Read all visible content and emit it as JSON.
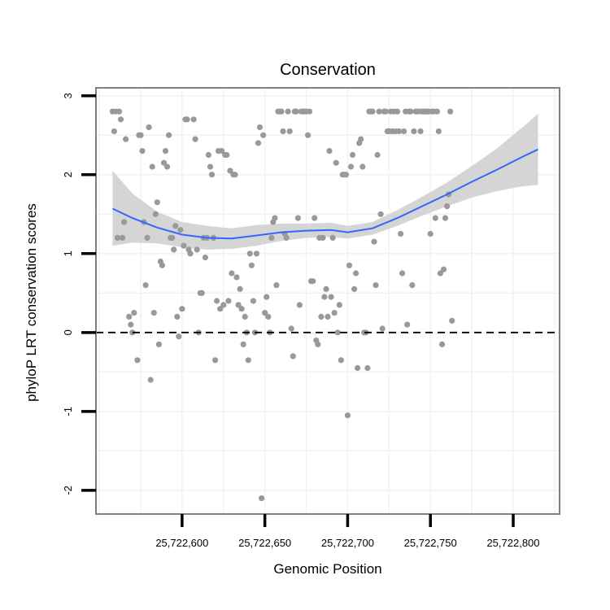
{
  "chart_data": {
    "type": "scatter",
    "title": "Conservation",
    "xlabel": "Genomic Position",
    "ylabel": "phyloP LRT conservation scores",
    "xlim": [
      25722548,
      25722828
    ],
    "ylim": [
      -2.3,
      3.1
    ],
    "x_ticks": [
      25722600,
      25722650,
      25722700,
      25722750,
      25722800
    ],
    "x_tick_labels": [
      "25,722,600",
      "25,722,650",
      "25,722,700",
      "25,722,750",
      "25,722,800"
    ],
    "y_ticks": [
      -2,
      -1,
      0,
      1,
      2,
      3
    ],
    "y_tick_labels": [
      "-2",
      "-1",
      "0",
      "1",
      "2",
      "3"
    ],
    "grid": true,
    "reference_line": {
      "y": 0,
      "style": "dashed"
    },
    "colors": {
      "points": "#999999",
      "smooth": "#3366FF",
      "band": "#d3d3d3",
      "panel_border": "#7f7f7f",
      "grid": "#f2f2f2"
    },
    "points": [
      [
        25722558,
        2.8
      ],
      [
        25722560,
        2.8
      ],
      [
        25722562,
        2.8
      ],
      [
        25722559,
        2.55
      ],
      [
        25722563,
        2.7
      ],
      [
        25722566,
        2.45
      ],
      [
        25722561,
        1.2
      ],
      [
        25722564,
        1.2
      ],
      [
        25722565,
        1.4
      ],
      [
        25722568,
        0.2
      ],
      [
        25722569,
        0.1
      ],
      [
        25722570,
        0.0
      ],
      [
        25722571,
        0.25
      ],
      [
        25722573,
        -0.35
      ],
      [
        25722574,
        2.5
      ],
      [
        25722575,
        2.5
      ],
      [
        25722576,
        2.3
      ],
      [
        25722577,
        1.4
      ],
      [
        25722578,
        0.6
      ],
      [
        25722579,
        1.2
      ],
      [
        25722580,
        2.6
      ],
      [
        25722581,
        -0.6
      ],
      [
        25722582,
        2.1
      ],
      [
        25722583,
        0.25
      ],
      [
        25722584,
        1.5
      ],
      [
        25722585,
        1.65
      ],
      [
        25722586,
        -0.15
      ],
      [
        25722587,
        0.9
      ],
      [
        25722588,
        0.85
      ],
      [
        25722589,
        2.15
      ],
      [
        25722590,
        2.3
      ],
      [
        25722591,
        2.1
      ],
      [
        25722592,
        2.5
      ],
      [
        25722593,
        1.2
      ],
      [
        25722594,
        1.2
      ],
      [
        25722595,
        1.05
      ],
      [
        25722596,
        1.35
      ],
      [
        25722597,
        0.2
      ],
      [
        25722598,
        -0.05
      ],
      [
        25722599,
        1.3
      ],
      [
        25722600,
        0.3
      ],
      [
        25722601,
        1.1
      ],
      [
        25722602,
        2.7
      ],
      [
        25722603,
        2.7
      ],
      [
        25722604,
        1.05
      ],
      [
        25722605,
        1.0
      ],
      [
        25722607,
        2.7
      ],
      [
        25722608,
        2.45
      ],
      [
        25722609,
        1.05
      ],
      [
        25722610,
        0.0
      ],
      [
        25722611,
        0.5
      ],
      [
        25722612,
        0.5
      ],
      [
        25722613,
        1.2
      ],
      [
        25722614,
        0.95
      ],
      [
        25722615,
        1.2
      ],
      [
        25722616,
        2.25
      ],
      [
        25722617,
        2.1
      ],
      [
        25722618,
        2.0
      ],
      [
        25722619,
        1.2
      ],
      [
        25722620,
        -0.35
      ],
      [
        25722621,
        0.4
      ],
      [
        25722622,
        2.3
      ],
      [
        25722623,
        0.3
      ],
      [
        25722624,
        2.3
      ],
      [
        25722625,
        0.35
      ],
      [
        25722626,
        2.25
      ],
      [
        25722627,
        2.25
      ],
      [
        25722628,
        0.4
      ],
      [
        25722629,
        2.05
      ],
      [
        25722630,
        0.75
      ],
      [
        25722631,
        2.0
      ],
      [
        25722632,
        2.0
      ],
      [
        25722633,
        0.7
      ],
      [
        25722634,
        0.35
      ],
      [
        25722635,
        0.55
      ],
      [
        25722636,
        0.3
      ],
      [
        25722637,
        -0.15
      ],
      [
        25722638,
        0.2
      ],
      [
        25722639,
        0.0
      ],
      [
        25722640,
        -0.35
      ],
      [
        25722641,
        1.0
      ],
      [
        25722642,
        0.85
      ],
      [
        25722643,
        0.4
      ],
      [
        25722644,
        0.0
      ],
      [
        25722645,
        1.0
      ],
      [
        25722646,
        2.4
      ],
      [
        25722647,
        2.6
      ],
      [
        25722648,
        -2.1
      ],
      [
        25722649,
        2.5
      ],
      [
        25722650,
        0.25
      ],
      [
        25722651,
        0.45
      ],
      [
        25722652,
        0.2
      ],
      [
        25722653,
        0.0
      ],
      [
        25722654,
        1.2
      ],
      [
        25722655,
        1.4
      ],
      [
        25722656,
        1.45
      ],
      [
        25722657,
        0.6
      ],
      [
        25722658,
        2.8
      ],
      [
        25722659,
        2.8
      ],
      [
        25722660,
        2.8
      ],
      [
        25722661,
        2.55
      ],
      [
        25722662,
        1.25
      ],
      [
        25722663,
        1.2
      ],
      [
        25722664,
        2.8
      ],
      [
        25722665,
        2.55
      ],
      [
        25722666,
        0.05
      ],
      [
        25722667,
        -0.3
      ],
      [
        25722668,
        2.8
      ],
      [
        25722669,
        2.8
      ],
      [
        25722670,
        1.45
      ],
      [
        25722671,
        0.35
      ],
      [
        25722672,
        2.8
      ],
      [
        25722673,
        2.8
      ],
      [
        25722674,
        2.8
      ],
      [
        25722675,
        2.8
      ],
      [
        25722676,
        2.5
      ],
      [
        25722677,
        2.8
      ],
      [
        25722678,
        0.65
      ],
      [
        25722679,
        0.65
      ],
      [
        25722680,
        1.45
      ],
      [
        25722681,
        -0.1
      ],
      [
        25722682,
        -0.15
      ],
      [
        25722683,
        1.2
      ],
      [
        25722684,
        0.2
      ],
      [
        25722685,
        1.2
      ],
      [
        25722686,
        0.45
      ],
      [
        25722687,
        0.55
      ],
      [
        25722688,
        0.2
      ],
      [
        25722689,
        2.3
      ],
      [
        25722690,
        0.45
      ],
      [
        25722691,
        1.2
      ],
      [
        25722692,
        0.25
      ],
      [
        25722693,
        2.15
      ],
      [
        25722694,
        0.0
      ],
      [
        25722695,
        0.35
      ],
      [
        25722696,
        -0.35
      ],
      [
        25722697,
        2.0
      ],
      [
        25722698,
        2.0
      ],
      [
        25722699,
        2.0
      ],
      [
        25722700,
        -1.05
      ],
      [
        25722701,
        0.85
      ],
      [
        25722702,
        2.1
      ],
      [
        25722703,
        2.25
      ],
      [
        25722704,
        0.55
      ],
      [
        25722705,
        0.75
      ],
      [
        25722706,
        -0.45
      ],
      [
        25722707,
        2.4
      ],
      [
        25722708,
        2.45
      ],
      [
        25722709,
        2.1
      ],
      [
        25722710,
        0.0
      ],
      [
        25722711,
        0.0
      ],
      [
        25722712,
        -0.45
      ],
      [
        25722713,
        2.8
      ],
      [
        25722714,
        2.8
      ],
      [
        25722715,
        2.8
      ],
      [
        25722716,
        1.15
      ],
      [
        25722717,
        0.6
      ],
      [
        25722718,
        2.25
      ],
      [
        25722719,
        2.8
      ],
      [
        25722720,
        1.5
      ],
      [
        25722721,
        0.05
      ],
      [
        25722722,
        2.8
      ],
      [
        25722723,
        2.8
      ],
      [
        25722724,
        2.55
      ],
      [
        25722725,
        2.55
      ],
      [
        25722726,
        2.8
      ],
      [
        25722727,
        2.55
      ],
      [
        25722728,
        2.8
      ],
      [
        25722729,
        2.55
      ],
      [
        25722730,
        2.8
      ],
      [
        25722731,
        2.55
      ],
      [
        25722732,
        1.25
      ],
      [
        25722733,
        0.75
      ],
      [
        25722734,
        2.55
      ],
      [
        25722735,
        2.8
      ],
      [
        25722736,
        0.1
      ],
      [
        25722737,
        2.8
      ],
      [
        25722738,
        2.8
      ],
      [
        25722739,
        0.6
      ],
      [
        25722740,
        2.55
      ],
      [
        25722741,
        2.8
      ],
      [
        25722742,
        2.8
      ],
      [
        25722743,
        2.8
      ],
      [
        25722744,
        2.55
      ],
      [
        25722745,
        2.8
      ],
      [
        25722746,
        2.8
      ],
      [
        25722747,
        2.8
      ],
      [
        25722748,
        2.8
      ],
      [
        25722749,
        2.8
      ],
      [
        25722750,
        1.25
      ],
      [
        25722751,
        2.8
      ],
      [
        25722752,
        2.8
      ],
      [
        25722753,
        1.45
      ],
      [
        25722754,
        2.8
      ],
      [
        25722755,
        2.55
      ],
      [
        25722756,
        0.75
      ],
      [
        25722757,
        -0.15
      ],
      [
        25722758,
        0.8
      ],
      [
        25722759,
        1.45
      ],
      [
        25722760,
        1.6
      ],
      [
        25722761,
        1.75
      ],
      [
        25722762,
        2.8
      ],
      [
        25722763,
        0.15
      ]
    ],
    "smooth": {
      "x": [
        25722558,
        25722570,
        25722585,
        25722600,
        25722615,
        25722630,
        25722645,
        25722660,
        25722675,
        25722690,
        25722700,
        25722715,
        25722730,
        25722745,
        25722760,
        25722775,
        25722790,
        25722805,
        25722815
      ],
      "y": [
        1.57,
        1.45,
        1.33,
        1.24,
        1.2,
        1.19,
        1.23,
        1.27,
        1.29,
        1.3,
        1.27,
        1.32,
        1.45,
        1.6,
        1.75,
        1.91,
        2.06,
        2.22,
        2.32
      ],
      "lower": [
        1.1,
        1.14,
        1.13,
        1.08,
        1.05,
        1.06,
        1.1,
        1.16,
        1.2,
        1.21,
        1.19,
        1.24,
        1.35,
        1.48,
        1.6,
        1.71,
        1.79,
        1.85,
        1.87
      ],
      "upper": [
        2.05,
        1.76,
        1.53,
        1.4,
        1.35,
        1.32,
        1.36,
        1.38,
        1.38,
        1.39,
        1.35,
        1.4,
        1.55,
        1.72,
        1.9,
        2.11,
        2.33,
        2.59,
        2.77
      ]
    }
  }
}
